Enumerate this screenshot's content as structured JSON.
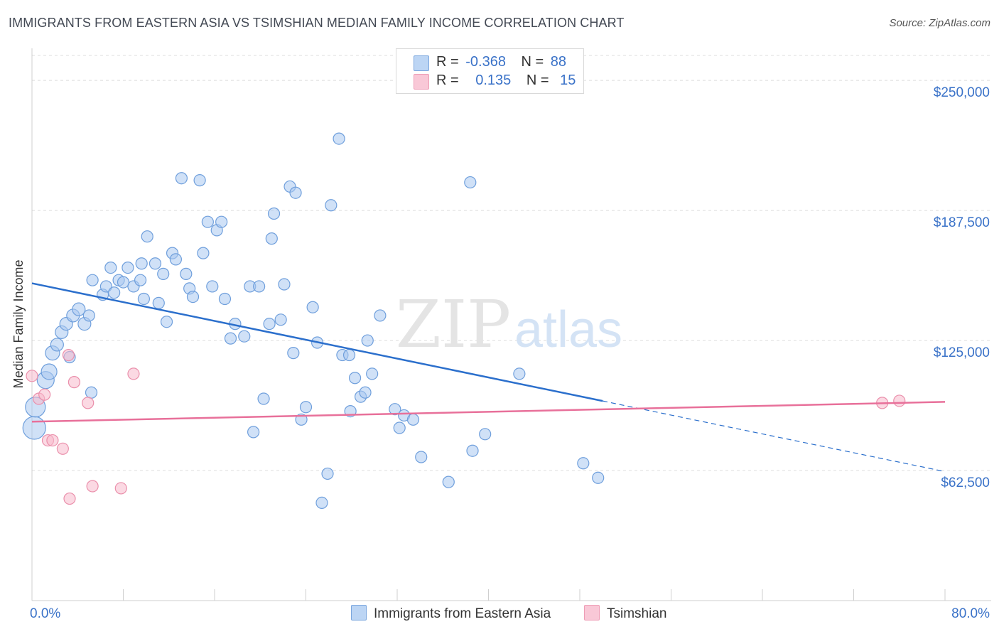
{
  "title": "IMMIGRANTS FROM EASTERN ASIA VS TSIMSHIAN MEDIAN FAMILY INCOME CORRELATION CHART",
  "source": "Source: ZipAtlas.com",
  "watermark": {
    "zip": "ZIP",
    "atlas": "atlas"
  },
  "legend": {
    "rows": [
      {
        "r_label": "R =",
        "r_value": "-0.368",
        "n_label": "N =",
        "n_value": "88"
      },
      {
        "r_label": "R =",
        "r_value": "0.135",
        "n_label": "N =",
        "n_value": "15"
      }
    ]
  },
  "bottom_legend": {
    "series1": "Immigrants from Eastern Asia",
    "series2": "Tsimshian"
  },
  "colors": {
    "blue_fill": "#a9c8f0",
    "blue_stroke": "#6f9fdc",
    "blue_line": "#2b6fcc",
    "pink_fill": "#f7b9cc",
    "pink_stroke": "#ea8fab",
    "pink_line": "#e8709a",
    "axis_text": "#3a72c8"
  },
  "chart_data": {
    "type": "scatter",
    "title": "IMMIGRANTS FROM EASTERN ASIA VS TSIMSHIAN MEDIAN FAMILY INCOME CORRELATION CHART",
    "xlabel": "",
    "ylabel": "Median Family Income",
    "xlim": [
      0,
      80
    ],
    "ylim": [
      0,
      262000
    ],
    "x_tick_labels": [
      "0.0%",
      "80.0%"
    ],
    "y_ticks": [
      62500,
      125000,
      187500,
      250000
    ],
    "y_tick_labels": [
      "$62,500",
      "$125,000",
      "$187,500",
      "$250,000"
    ],
    "series": [
      {
        "name": "Immigrants from Eastern Asia",
        "R": -0.368,
        "N": 88,
        "trend": {
          "x0": 0,
          "y0": 152500,
          "x_solid_end": 50,
          "x1": 80,
          "y1": 62000
        },
        "points": [
          [
            0.2,
            83000,
            16
          ],
          [
            0.3,
            93000,
            14
          ],
          [
            1.2,
            106000,
            12
          ],
          [
            1.5,
            110000,
            11
          ],
          [
            1.8,
            119000,
            10
          ],
          [
            2.2,
            123000,
            9
          ],
          [
            2.6,
            129000,
            9
          ],
          [
            3.0,
            133000,
            9
          ],
          [
            3.3,
            117000,
            8
          ],
          [
            3.6,
            137000,
            9
          ],
          [
            4.1,
            140000,
            9
          ],
          [
            4.6,
            133000,
            9
          ],
          [
            5.0,
            137000,
            8
          ],
          [
            5.2,
            100000,
            8
          ],
          [
            5.3,
            154000,
            8
          ],
          [
            6.2,
            147000,
            8
          ],
          [
            6.5,
            151000,
            8
          ],
          [
            6.9,
            160000,
            8
          ],
          [
            7.2,
            148000,
            8
          ],
          [
            7.6,
            154000,
            8
          ],
          [
            8.0,
            153000,
            8
          ],
          [
            8.4,
            160000,
            8
          ],
          [
            8.9,
            151000,
            8
          ],
          [
            9.5,
            154000,
            8
          ],
          [
            9.6,
            162000,
            8
          ],
          [
            9.8,
            145000,
            8
          ],
          [
            10.1,
            175000,
            8
          ],
          [
            10.8,
            162000,
            8
          ],
          [
            11.1,
            143000,
            8
          ],
          [
            11.5,
            157000,
            8
          ],
          [
            11.8,
            134000,
            8
          ],
          [
            12.3,
            167000,
            8
          ],
          [
            12.6,
            164000,
            8
          ],
          [
            13.1,
            203000,
            8
          ],
          [
            13.5,
            157000,
            8
          ],
          [
            13.8,
            150000,
            8
          ],
          [
            14.1,
            146000,
            8
          ],
          [
            14.7,
            202000,
            8
          ],
          [
            15.0,
            167000,
            8
          ],
          [
            15.4,
            182000,
            8
          ],
          [
            15.8,
            151000,
            8
          ],
          [
            16.2,
            178000,
            8
          ],
          [
            16.6,
            182000,
            8
          ],
          [
            16.9,
            145000,
            8
          ],
          [
            17.4,
            126000,
            8
          ],
          [
            17.8,
            133000,
            8
          ],
          [
            18.6,
            127000,
            8
          ],
          [
            19.1,
            151000,
            8
          ],
          [
            19.4,
            81000,
            8
          ],
          [
            19.9,
            151000,
            8
          ],
          [
            20.3,
            97000,
            8
          ],
          [
            20.8,
            133000,
            8
          ],
          [
            21.0,
            174000,
            8
          ],
          [
            21.2,
            186000,
            8
          ],
          [
            21.8,
            135000,
            8
          ],
          [
            22.1,
            152000,
            8
          ],
          [
            22.6,
            199000,
            8
          ],
          [
            22.9,
            119000,
            8
          ],
          [
            23.1,
            196000,
            8
          ],
          [
            23.6,
            87000,
            8
          ],
          [
            24.0,
            93000,
            8
          ],
          [
            24.6,
            141000,
            8
          ],
          [
            25.0,
            124000,
            8
          ],
          [
            25.4,
            47000,
            8
          ],
          [
            25.9,
            61000,
            8
          ],
          [
            26.2,
            190000,
            8
          ],
          [
            26.9,
            222000,
            8
          ],
          [
            27.2,
            118000,
            8
          ],
          [
            27.8,
            118000,
            8
          ],
          [
            27.9,
            91000,
            8
          ],
          [
            28.3,
            107000,
            8
          ],
          [
            28.8,
            98000,
            8
          ],
          [
            29.2,
            100000,
            8
          ],
          [
            29.4,
            125000,
            8
          ],
          [
            29.8,
            109000,
            8
          ],
          [
            30.5,
            137000,
            8
          ],
          [
            31.8,
            92000,
            8
          ],
          [
            32.2,
            83000,
            8
          ],
          [
            32.6,
            89000,
            8
          ],
          [
            33.4,
            87000,
            8
          ],
          [
            34.1,
            69000,
            8
          ],
          [
            36.5,
            57000,
            8
          ],
          [
            38.6,
            72000,
            8
          ],
          [
            39.7,
            80000,
            8
          ],
          [
            38.4,
            201000,
            8
          ],
          [
            42.7,
            109000,
            8
          ],
          [
            48.3,
            66000,
            8
          ],
          [
            49.6,
            59000,
            8
          ]
        ]
      },
      {
        "name": "Tsimshian",
        "R": 0.135,
        "N": 15,
        "trend": {
          "x0": 0,
          "y0": 86000,
          "x1": 80,
          "y1": 95500
        },
        "points": [
          [
            0.0,
            108000,
            8
          ],
          [
            0.6,
            97000,
            8
          ],
          [
            1.1,
            99000,
            8
          ],
          [
            1.4,
            77000,
            8
          ],
          [
            1.8,
            77000,
            8
          ],
          [
            2.7,
            73000,
            8
          ],
          [
            3.2,
            118000,
            8
          ],
          [
            3.3,
            49000,
            8
          ],
          [
            3.7,
            105000,
            8
          ],
          [
            4.9,
            95000,
            8
          ],
          [
            5.3,
            55000,
            8
          ],
          [
            7.8,
            54000,
            8
          ],
          [
            8.9,
            109000,
            8
          ],
          [
            74.5,
            95000,
            8
          ],
          [
            76.0,
            96000,
            8
          ]
        ]
      }
    ]
  }
}
